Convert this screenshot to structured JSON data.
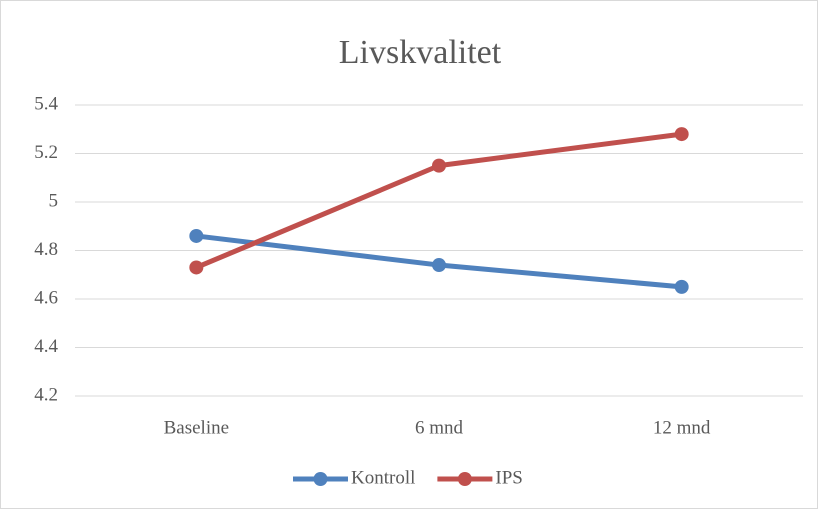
{
  "chart_data": {
    "type": "line",
    "title": "Livskvalitet",
    "categories": [
      "Baseline",
      "6 mnd",
      "12 mnd"
    ],
    "series": [
      {
        "name": "Kontroll",
        "color": "#4f81bd",
        "values": [
          4.86,
          4.74,
          4.65
        ]
      },
      {
        "name": "IPS",
        "color": "#c0504d",
        "values": [
          4.73,
          5.15,
          5.28
        ]
      }
    ],
    "ylim": [
      4.2,
      5.4
    ],
    "yticks": [
      4.2,
      4.4,
      4.6,
      4.8,
      5,
      5.2,
      5.4
    ],
    "grid": true,
    "legend": "bottom"
  }
}
